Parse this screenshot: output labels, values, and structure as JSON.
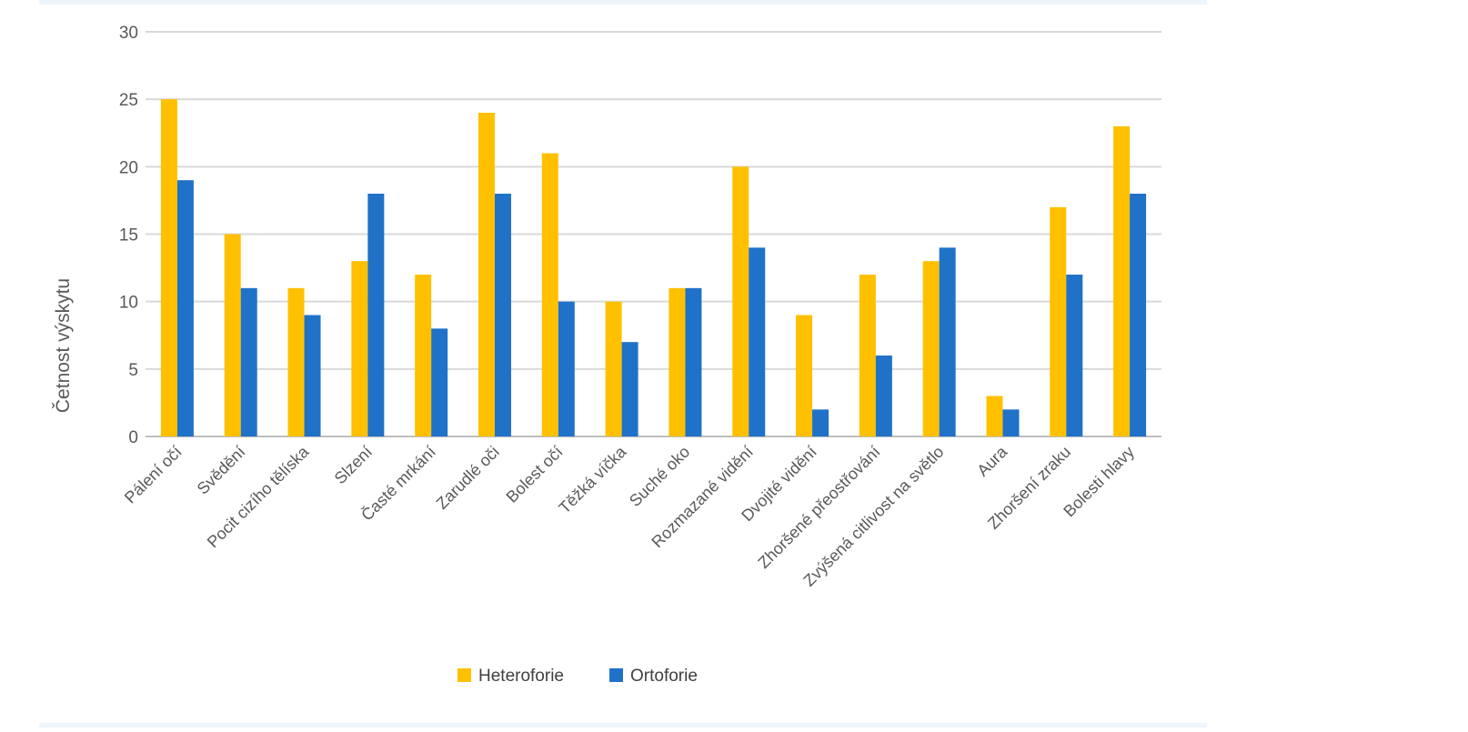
{
  "chart_data": {
    "type": "bar",
    "ylabel": "Četnost výskytu",
    "ylim": [
      0,
      30
    ],
    "yticks": [
      0,
      5,
      10,
      15,
      20,
      25,
      30
    ],
    "grid": true,
    "legend_position": "bottom",
    "categories": [
      "Pálení očí",
      "Svědění",
      "Pocit cizího tělíska",
      "Slzení",
      "Časté mrkání",
      "Zarudlé oči",
      "Bolest očí",
      "Těžká víčka",
      "Suché oko",
      "Rozmazané vidění",
      "Dvojité vidění",
      "Zhoršené přeostřování",
      "Zvýšená citlivost na světlo",
      "Aura",
      "Zhoršení zraku",
      "Bolesti hlavy"
    ],
    "series": [
      {
        "name": "Heteroforie",
        "color": "#ffc000",
        "values": [
          25,
          15,
          11,
          13,
          12,
          24,
          21,
          10,
          11,
          20,
          9,
          12,
          13,
          3,
          17,
          23
        ]
      },
      {
        "name": "Ortoforie",
        "color": "#1f72c8",
        "values": [
          19,
          11,
          9,
          18,
          8,
          18,
          10,
          7,
          11,
          14,
          2,
          6,
          14,
          2,
          12,
          18
        ]
      }
    ]
  }
}
